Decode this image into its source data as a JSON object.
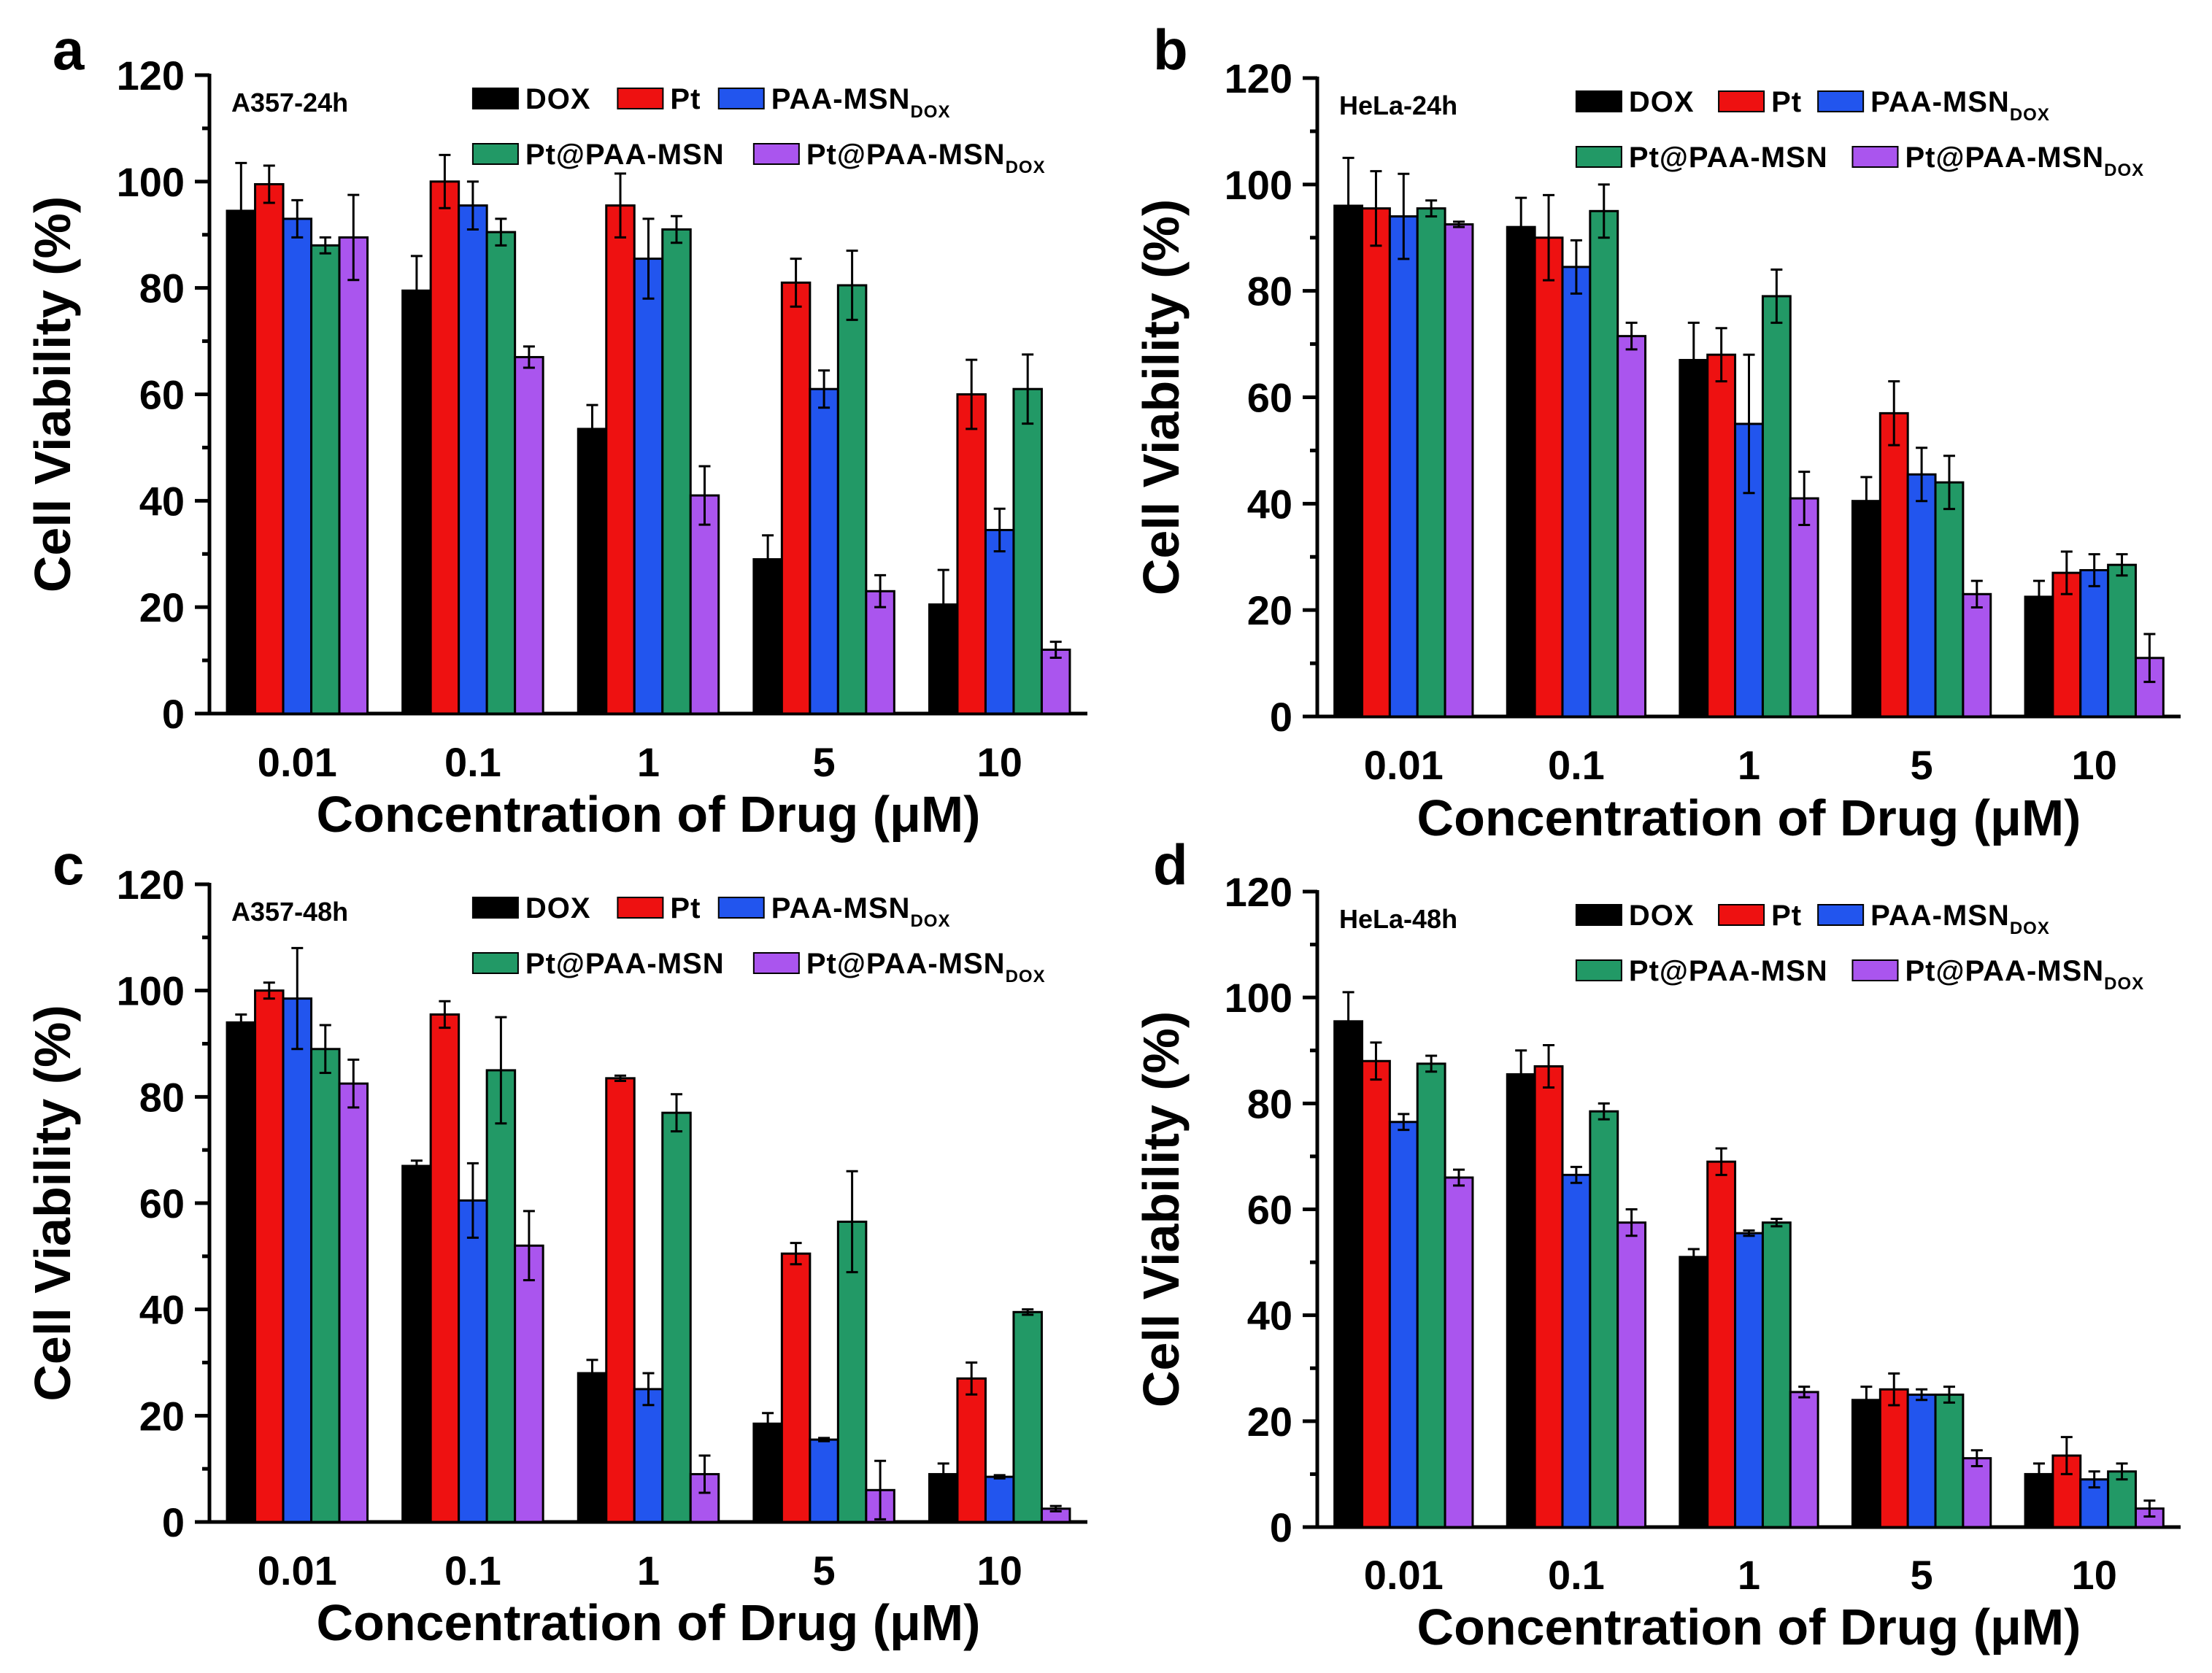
{
  "chart_data": [
    {
      "type": "bar",
      "panel": "a",
      "title": "A357-24h",
      "xlabel": "Concentration of Drug (μM)",
      "ylabel": "Cell Viability (%)",
      "ylim": [
        0,
        120
      ],
      "yticks": [
        0,
        20,
        40,
        60,
        80,
        100,
        120
      ],
      "categories": [
        "0.01",
        "0.1",
        "1",
        "5",
        "10"
      ],
      "series": [
        {
          "name": "DOX",
          "subscript": "",
          "values": [
            94.5,
            79.5,
            53.5,
            29,
            20.5
          ],
          "errors": [
            9,
            6.5,
            4.5,
            4.5,
            6.5
          ]
        },
        {
          "name": "Pt",
          "subscript": "",
          "values": [
            99.5,
            100,
            95.5,
            81,
            60
          ],
          "errors": [
            3.5,
            5,
            6,
            4.5,
            6.5
          ]
        },
        {
          "name": "PAA-MSN",
          "subscript": "DOX",
          "values": [
            93,
            95.5,
            85.5,
            61,
            34.5
          ],
          "errors": [
            3.5,
            4.5,
            7.5,
            3.5,
            4
          ]
        },
        {
          "name": "Pt@PAA-MSN",
          "subscript": "",
          "values": [
            88,
            90.5,
            91,
            80.5,
            61
          ],
          "errors": [
            1.5,
            2.5,
            2.5,
            6.5,
            6.5
          ]
        },
        {
          "name": "Pt@PAA-MSN",
          "subscript": "DOX",
          "values": [
            89.5,
            67,
            41,
            23,
            12
          ],
          "errors": [
            8,
            2,
            5.5,
            3,
            1.5
          ]
        }
      ]
    },
    {
      "type": "bar",
      "panel": "b",
      "title": "HeLa-24h",
      "xlabel": "Concentration of Drug (μM)",
      "ylabel": "Cell Viability (%)",
      "ylim": [
        0,
        120
      ],
      "yticks": [
        0,
        20,
        40,
        60,
        80,
        100,
        120
      ],
      "categories": [
        "0.01",
        "0.1",
        "1",
        "5",
        "10"
      ],
      "series": [
        {
          "name": "DOX",
          "subscript": "",
          "values": [
            96,
            92,
            67,
            40.5,
            22.5
          ],
          "errors": [
            9,
            5.5,
            7,
            4.5,
            3
          ]
        },
        {
          "name": "Pt",
          "subscript": "",
          "values": [
            95.5,
            90,
            68,
            57,
            27
          ],
          "errors": [
            7,
            8,
            5,
            6,
            4
          ]
        },
        {
          "name": "PAA-MSN",
          "subscript": "DOX",
          "values": [
            94,
            84.5,
            55,
            45.5,
            27.5
          ],
          "errors": [
            8,
            5,
            13,
            5,
            3
          ]
        },
        {
          "name": "Pt@PAA-MSN",
          "subscript": "",
          "values": [
            95.5,
            95,
            79,
            44,
            28.5
          ],
          "errors": [
            1.5,
            5,
            5,
            5,
            2
          ]
        },
        {
          "name": "Pt@PAA-MSN",
          "subscript": "DOX",
          "values": [
            92.5,
            71.5,
            41,
            23,
            11
          ],
          "errors": [
            0.5,
            2.5,
            5,
            2.5,
            4.5
          ]
        }
      ]
    },
    {
      "type": "bar",
      "panel": "c",
      "title": "A357-48h",
      "xlabel": "Concentration of Drug (μM)",
      "ylabel": "Cell Viability (%)",
      "ylim": [
        0,
        120
      ],
      "yticks": [
        0,
        20,
        40,
        60,
        80,
        100,
        120
      ],
      "categories": [
        "0.01",
        "0.1",
        "1",
        "5",
        "10"
      ],
      "series": [
        {
          "name": "DOX",
          "subscript": "",
          "values": [
            94,
            67,
            28,
            18.5,
            9
          ],
          "errors": [
            1.5,
            1,
            2.5,
            2,
            2
          ]
        },
        {
          "name": "Pt",
          "subscript": "",
          "values": [
            100,
            95.5,
            83.5,
            50.5,
            27
          ],
          "errors": [
            1.5,
            2.5,
            0.5,
            2,
            3
          ]
        },
        {
          "name": "PAA-MSN",
          "subscript": "DOX",
          "values": [
            98.5,
            60.5,
            25,
            15.5,
            8.5
          ],
          "errors": [
            9.5,
            7,
            3,
            0.3,
            0.3
          ]
        },
        {
          "name": "Pt@PAA-MSN",
          "subscript": "",
          "values": [
            89,
            85,
            77,
            56.5,
            39.5
          ],
          "errors": [
            4.5,
            10,
            3.5,
            9.5,
            0.5
          ]
        },
        {
          "name": "Pt@PAA-MSN",
          "subscript": "DOX",
          "values": [
            82.5,
            52,
            9,
            6,
            2.5
          ],
          "errors": [
            4.5,
            6.5,
            3.5,
            5.5,
            0.5
          ]
        }
      ]
    },
    {
      "type": "bar",
      "panel": "d",
      "title": "HeLa-48h",
      "xlabel": "Concentration of Drug (μM)",
      "ylabel": "Cell Viability (%)",
      "ylim": [
        0,
        120
      ],
      "yticks": [
        0,
        20,
        40,
        60,
        80,
        100,
        120
      ],
      "categories": [
        "0.01",
        "0.1",
        "1",
        "5",
        "10"
      ],
      "series": [
        {
          "name": "DOX",
          "subscript": "",
          "values": [
            95.5,
            85.5,
            51,
            24,
            10
          ],
          "errors": [
            5.5,
            4.5,
            1.5,
            2.5,
            2
          ]
        },
        {
          "name": "Pt",
          "subscript": "",
          "values": [
            88,
            87,
            69,
            26,
            13.5
          ],
          "errors": [
            3.5,
            4,
            2.5,
            3,
            3.5
          ]
        },
        {
          "name": "PAA-MSN",
          "subscript": "DOX",
          "values": [
            76.5,
            66.5,
            55.5,
            25,
            9
          ],
          "errors": [
            1.5,
            1.5,
            0.5,
            1,
            1.5
          ]
        },
        {
          "name": "Pt@PAA-MSN",
          "subscript": "",
          "values": [
            87.5,
            78.5,
            57.5,
            25,
            10.5
          ],
          "errors": [
            1.5,
            1.5,
            0.7,
            1.5,
            1.5
          ]
        },
        {
          "name": "Pt@PAA-MSN",
          "subscript": "DOX",
          "values": [
            66,
            57.5,
            25.5,
            13,
            3.5
          ],
          "errors": [
            1.5,
            2.5,
            1,
            1.5,
            1.5
          ]
        }
      ]
    }
  ],
  "colors": {
    "DOX": "#000000",
    "Pt": "#ee1111",
    "PAA-MSN-DOX": "#2255ee",
    "Pt@PAA-MSN": "#229966",
    "Pt@PAA-MSN-DOX": "#aa55ee"
  }
}
